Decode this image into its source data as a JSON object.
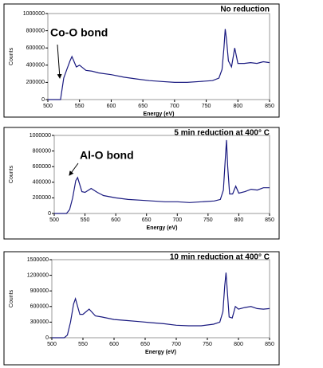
{
  "chart_data": [
    {
      "type": "line",
      "title": "No reduction",
      "x_label": "Energy (eV)",
      "y_label": "Counts",
      "annotation": "Co-O bond",
      "color": "#1a1a80",
      "x": [
        500,
        510,
        520,
        525,
        530,
        535,
        538,
        545,
        550,
        560,
        570,
        580,
        600,
        620,
        640,
        660,
        680,
        700,
        720,
        740,
        760,
        770,
        775,
        778,
        780,
        782,
        785,
        790,
        795,
        800,
        810,
        820,
        830,
        840,
        850
      ],
      "values": [
        0,
        0,
        0,
        250000,
        350000,
        450000,
        500000,
        380000,
        400000,
        340000,
        330000,
        310000,
        290000,
        260000,
        240000,
        220000,
        210000,
        200000,
        200000,
        210000,
        220000,
        250000,
        350000,
        600000,
        820000,
        700000,
        450000,
        380000,
        600000,
        420000,
        420000,
        430000,
        420000,
        440000,
        430000
      ],
      "xlim": [
        500,
        850
      ],
      "xticks": [
        500,
        550,
        600,
        650,
        700,
        750,
        800,
        850
      ],
      "ylim": [
        0,
        1000000
      ],
      "yticks": [
        0,
        200000,
        400000,
        600000,
        800000,
        1000000
      ]
    },
    {
      "type": "line",
      "title": "5 min reduction  at 400° C",
      "x_label": "Energy (eV)",
      "y_label": "Counts",
      "annotation": "Al-O bond",
      "color": "#1a1a80",
      "x": [
        500,
        510,
        520,
        525,
        530,
        535,
        538,
        545,
        550,
        560,
        570,
        580,
        600,
        620,
        640,
        660,
        680,
        700,
        720,
        740,
        760,
        770,
        775,
        778,
        780,
        782,
        785,
        790,
        795,
        800,
        810,
        820,
        830,
        840,
        850
      ],
      "values": [
        0,
        0,
        0,
        50000,
        200000,
        420000,
        460000,
        280000,
        270000,
        320000,
        270000,
        230000,
        200000,
        180000,
        170000,
        160000,
        150000,
        150000,
        140000,
        150000,
        160000,
        180000,
        300000,
        700000,
        940000,
        600000,
        250000,
        250000,
        350000,
        260000,
        280000,
        310000,
        300000,
        330000,
        330000
      ],
      "xlim": [
        500,
        850
      ],
      "xticks": [
        500,
        550,
        600,
        650,
        700,
        750,
        800,
        850
      ],
      "ylim": [
        0,
        1000000
      ],
      "yticks": [
        0,
        200000,
        400000,
        600000,
        800000,
        1000000
      ]
    },
    {
      "type": "line",
      "title": "10 min reduction  at 400° C",
      "x_label": "Energy (eV)",
      "y_label": "Counts",
      "color": "#1a1a80",
      "x": [
        500,
        510,
        520,
        525,
        530,
        535,
        538,
        545,
        550,
        560,
        570,
        580,
        600,
        620,
        640,
        660,
        680,
        700,
        720,
        740,
        760,
        770,
        775,
        778,
        780,
        782,
        785,
        790,
        795,
        800,
        810,
        820,
        830,
        840,
        850
      ],
      "values": [
        0,
        0,
        0,
        50000,
        300000,
        650000,
        750000,
        450000,
        450000,
        550000,
        420000,
        400000,
        350000,
        330000,
        310000,
        290000,
        270000,
        240000,
        230000,
        230000,
        260000,
        300000,
        500000,
        1000000,
        1250000,
        900000,
        400000,
        380000,
        600000,
        550000,
        580000,
        600000,
        560000,
        550000,
        560000
      ],
      "xlim": [
        500,
        850
      ],
      "xticks": [
        500,
        550,
        600,
        650,
        700,
        750,
        800,
        850
      ],
      "ylim": [
        0,
        1500000
      ],
      "yticks": [
        0,
        300000,
        600000,
        900000,
        1200000,
        1500000
      ]
    }
  ]
}
